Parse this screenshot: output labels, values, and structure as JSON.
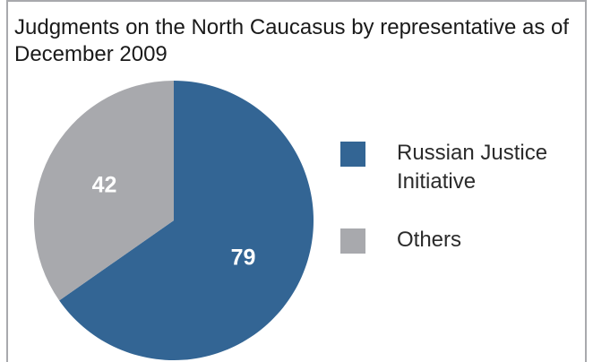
{
  "chart_data": {
    "type": "pie",
    "title": "Judgments on the North Caucasus by representative as of December 2009",
    "slices": [
      {
        "name": "Russian Justice Initiative",
        "value": 79,
        "color": "#336594"
      },
      {
        "name": "Others",
        "value": 42,
        "color": "#a8a9ad"
      }
    ],
    "legend_position": "right",
    "data_label_color": "#ffffff"
  }
}
